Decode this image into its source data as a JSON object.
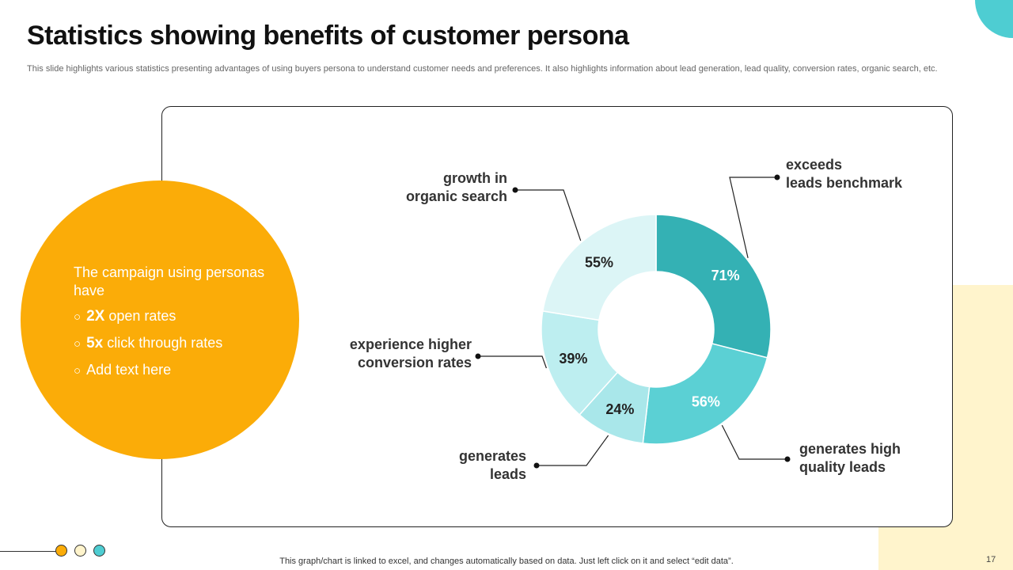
{
  "slide": {
    "title": "Statistics showing benefits of customer persona",
    "subtitle": "This slide highlights various statistics presenting advantages of using buyers persona to understand customer needs and preferences. It also highlights information about lead generation, lead quality, conversion rates, organic search, etc.",
    "footer_note": "This graph/chart is linked to excel,  and changes automatically based on data. Just left click on it and select “edit data”.",
    "page_number": "17"
  },
  "highlight": {
    "intro": "The campaign using personas have",
    "bullet_mark": "○",
    "bullets": [
      {
        "value": "2X",
        "text": "open rates"
      },
      {
        "value": "5x",
        "text": "click through rates"
      },
      {
        "value": "",
        "text": "Add text here"
      }
    ]
  },
  "colors": {
    "accent_orange": "#fbac08",
    "accent_teal": "#4ecdd2",
    "cream": "#fff4cc",
    "dot_colors": [
      "#fbac08",
      "#fff4cc",
      "#4ecdd2"
    ]
  },
  "chart_data": {
    "type": "pie",
    "style": "donut",
    "title": "",
    "slices": [
      {
        "label_lines": [
          "exceeds",
          "leads benchmark"
        ],
        "label": "71%",
        "value": 71,
        "color": "#34b1b4"
      },
      {
        "label_lines": [
          "generates high",
          "quality leads"
        ],
        "label": "56%",
        "value": 56,
        "color": "#5bd0d4"
      },
      {
        "label_lines": [
          "generates",
          "leads"
        ],
        "label": "24%",
        "value": 24,
        "color": "#a9e7ea"
      },
      {
        "label_lines": [
          "experience higher",
          "conversion rates"
        ],
        "label": "39%",
        "value": 39,
        "color": "#bdeef0"
      },
      {
        "label_lines": [
          "growth in",
          "organic search"
        ],
        "label": "55%",
        "value": 55,
        "color": "#dcf5f6"
      }
    ]
  }
}
